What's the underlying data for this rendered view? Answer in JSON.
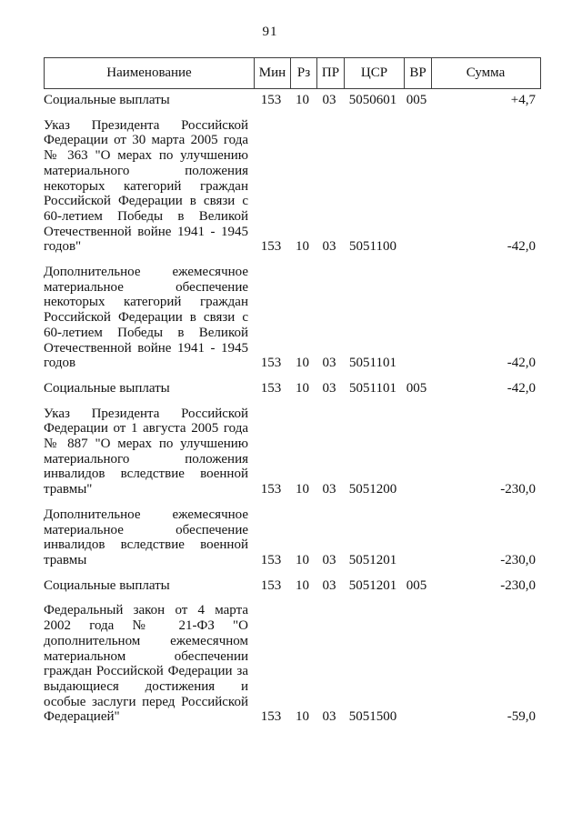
{
  "page": {
    "number": "91"
  },
  "table": {
    "headers": {
      "name": "Наименование",
      "min": "Мин",
      "rz": "Рз",
      "pr": "ПР",
      "csr": "ЦСР",
      "vr": "ВР",
      "summa": "Сумма"
    },
    "rows": [
      {
        "name": "Социальные выплаты",
        "min": "153",
        "rz": "10",
        "pr": "03",
        "csr": "5050601",
        "vr": "005",
        "summa": "+4,7"
      },
      {
        "name": "Указ Президента Российской Федерации от 30 марта 2005 года № 363 \"О мерах по улучшению материального положения некоторых категорий граждан Российской Федерации в связи с 60-летием Победы в Великой Отечественной войне 1941 - 1945 годов\"",
        "min": "153",
        "rz": "10",
        "pr": "03",
        "csr": "5051100",
        "vr": "",
        "summa": "-42,0"
      },
      {
        "name": "Дополнительное ежемесячное материальное обеспечение некоторых категорий граждан Российской Федерации в связи с 60-летием Победы в Великой Отечественной войне 1941 - 1945 годов",
        "min": "153",
        "rz": "10",
        "pr": "03",
        "csr": "5051101",
        "vr": "",
        "summa": "-42,0"
      },
      {
        "name": "Социальные выплаты",
        "min": "153",
        "rz": "10",
        "pr": "03",
        "csr": "5051101",
        "vr": "005",
        "summa": "-42,0"
      },
      {
        "name": "Указ Президента Российской Федерации от 1 августа 2005 года № 887 \"О мерах по улучшению материального положения инвалидов вследствие военной травмы\"",
        "min": "153",
        "rz": "10",
        "pr": "03",
        "csr": "5051200",
        "vr": "",
        "summa": "-230,0"
      },
      {
        "name": "Дополнительное ежемесячное материальное обеспечение инвалидов вследствие военной травмы",
        "min": "153",
        "rz": "10",
        "pr": "03",
        "csr": "5051201",
        "vr": "",
        "summa": "-230,0"
      },
      {
        "name": "Социальные выплаты",
        "min": "153",
        "rz": "10",
        "pr": "03",
        "csr": "5051201",
        "vr": "005",
        "summa": "-230,0"
      },
      {
        "name": "Федеральный закон от 4 марта 2002 года № 21-ФЗ \"О дополнительном ежемесячном материальном обеспечении граждан Российской Федерации за выдающиеся достижения и особые заслуги перед Российской Федерацией\"",
        "min": "153",
        "rz": "10",
        "pr": "03",
        "csr": "5051500",
        "vr": "",
        "summa": "-59,0"
      }
    ]
  }
}
